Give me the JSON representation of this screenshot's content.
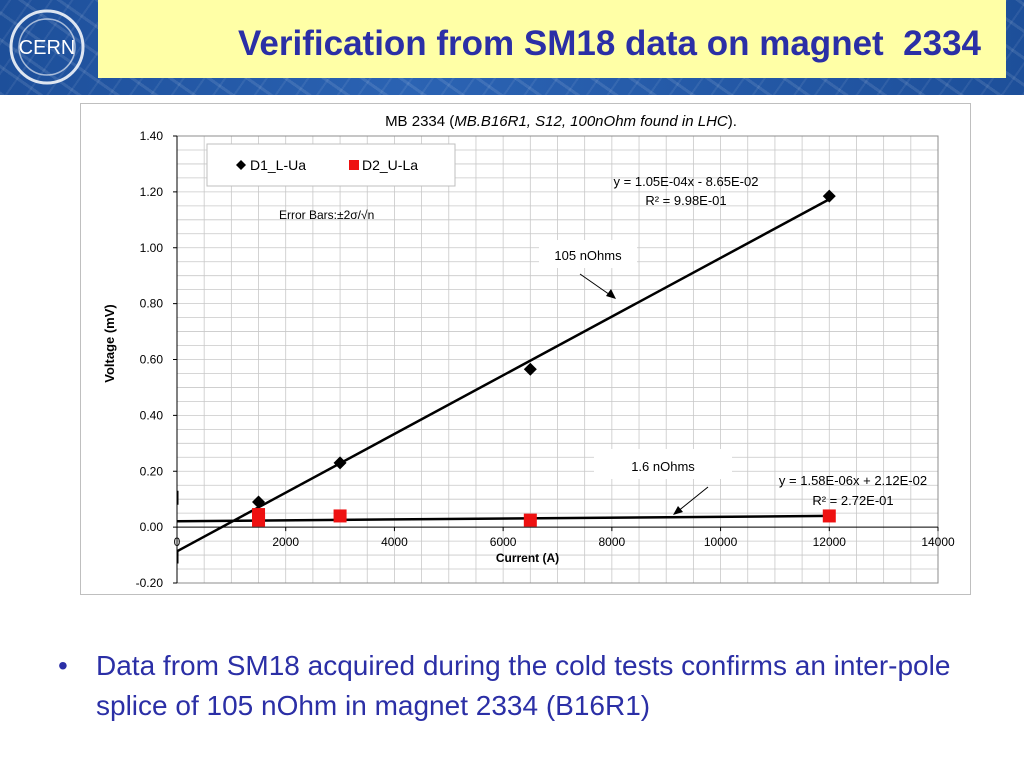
{
  "slide": {
    "title": "Verification from SM18 data on magnet  2334",
    "logo_text": "CERN",
    "bullet_text": "Data from SM18 acquired during the cold tests confirms an inter-pole splice of 105 nOhm in magnet 2334 (B16R1)",
    "colors": {
      "title": "#2b2fa6",
      "title_bg": "#ffffa6",
      "banner": "#1d4f9a"
    }
  },
  "chart_data": {
    "type": "scatter",
    "title_prefix": "MB  2334  (",
    "title_italic": "MB.B16R1, S12, 100nOhm found in LHC",
    "title_suffix": ").",
    "xlabel": "Current (A)",
    "ylabel": "Voltage (mV)",
    "xlim": [
      0,
      14000
    ],
    "ylim": [
      -0.2,
      1.4
    ],
    "x_ticks": [
      "0",
      "2000",
      "4000",
      "6000",
      "8000",
      "10000",
      "12000",
      "14000"
    ],
    "y_ticks": [
      "-0.20",
      "0.00",
      "0.20",
      "0.40",
      "0.60",
      "0.80",
      "1.00",
      "1.20",
      "1.40"
    ],
    "grid": true,
    "legend_position": "top-left",
    "series": [
      {
        "name": "D1_L-Ua",
        "marker": "diamond",
        "color": "#000000",
        "x": [
          1500,
          3000,
          6500,
          12000
        ],
        "y": [
          0.09,
          0.23,
          0.565,
          1.185
        ],
        "trendline": {
          "slope": 0.000105,
          "intercept": -0.0865
        },
        "equation": "y = 1.05E-04x - 8.65E-02",
        "r2": "R² = 9.98E-01"
      },
      {
        "name": "D2_U-La",
        "marker": "square",
        "color": "#ee1111",
        "x": [
          1500,
          1500,
          3000,
          6500,
          12000
        ],
        "y": [
          0.045,
          0.025,
          0.04,
          0.025,
          0.04
        ],
        "trendline": {
          "slope": 1.58e-06,
          "intercept": 0.0212
        },
        "equation": "y = 1.58E-06x + 2.12E-02",
        "r2": "R² = 2.72E-01"
      }
    ],
    "annotations": {
      "error_bars": "Error Bars:±2σ/√n",
      "label_top": "105 nOhms",
      "label_bottom": "1.6 nOhms"
    }
  }
}
